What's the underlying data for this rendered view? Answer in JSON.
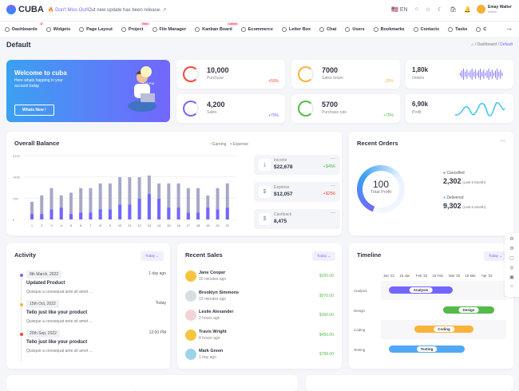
{
  "header": {
    "logo": "CUBA",
    "notice_highlight": "Don't Miss Out!",
    "notice_text": "Out new update has been release.",
    "lang": "EN",
    "user_name": "Emay Walter",
    "user_role": "Admin",
    "cart_count": "0",
    "bell_count": "0"
  },
  "nav": [
    {
      "label": "Dashboards",
      "badge": "2"
    },
    {
      "label": "Widgets"
    },
    {
      "label": "Page Layout"
    },
    {
      "label": "Project",
      "badge": "New"
    },
    {
      "label": "File Manager"
    },
    {
      "label": "Kanban Board",
      "badge": "Latest"
    },
    {
      "label": "Ecommerce"
    },
    {
      "label": "Letter Box"
    },
    {
      "label": "Chat"
    },
    {
      "label": "Users"
    },
    {
      "label": "Bookmarks"
    },
    {
      "label": "Contacts"
    },
    {
      "label": "Tasks"
    },
    {
      "label": "C"
    }
  ],
  "page": {
    "title": "Default",
    "breadcrumb": [
      "Dashboard",
      "Default"
    ]
  },
  "welcome": {
    "title": "Welcome to cuba",
    "text": "Here whats happing in your account today",
    "button": "Whats New !",
    "time": "3:58 PM"
  },
  "stats": [
    {
      "value": "10,000",
      "label": "Purchase",
      "change": "+50%",
      "color": "#fc4438"
    },
    {
      "value": "7000",
      "label": "Sales return",
      "change": "-20%",
      "color": "#f8b33b"
    },
    {
      "value": "4,200",
      "label": "Sales",
      "change": "+70%",
      "color": "#7366ff"
    },
    {
      "value": "5700",
      "label": "Purchase rate",
      "change": "+70%",
      "color": "#54ba4a"
    }
  ],
  "mini": [
    {
      "value": "1,80k",
      "label": "Orders"
    },
    {
      "value": "6,90k",
      "label": "Profit"
    }
  ],
  "balance": {
    "title": "Overall Balance",
    "side": [
      {
        "name": "Income",
        "amount": "$22,678",
        "delta": "+$456",
        "color": "#54ba4a"
      },
      {
        "name": "Expense",
        "amount": "$12,057",
        "delta": "+$256",
        "color": "#fc4438"
      },
      {
        "name": "Cashback",
        "amount": "8,475",
        "delta": "",
        "color": "#000"
      }
    ]
  },
  "chart_data": {
    "type": "bar",
    "categories": [
      "1",
      "2",
      "3",
      "4",
      "5",
      "6",
      "7",
      "8",
      "9",
      "10",
      "11",
      "12",
      "13",
      "14",
      "15",
      "16",
      "17",
      "18",
      "19",
      "20",
      "21"
    ],
    "series": [
      {
        "name": "Earning",
        "color": "#a6a8c9",
        "values": [
          580,
          790,
          1030,
          790,
          880,
          1030,
          1030,
          1185,
          1185,
          1390,
          1390,
          1390,
          1445,
          1185,
          1185,
          1185,
          1030,
          1030,
          790,
          1030,
          1185
        ]
      },
      {
        "name": "Expense",
        "color": "#7366ff",
        "values": [
          180,
          180,
          330,
          385,
          180,
          225,
          225,
          330,
          330,
          485,
          485,
          680,
          835,
          680,
          385,
          385,
          225,
          225,
          385,
          330,
          385
        ]
      }
    ],
    "yticks": [
      "0",
      "700",
      "1400",
      "2100"
    ],
    "ylim": [
      0,
      2100
    ],
    "legend": "top"
  },
  "orders": {
    "title": "Recent Orders",
    "center_value": "100",
    "center_label": "Total Profit",
    "items": [
      {
        "name": "Cancelled",
        "value": "2,302",
        "period": "(Last 6 Month)",
        "color": "#7366ff"
      },
      {
        "name": "Delivered",
        "value": "9,302",
        "period": "(Last 6 Month)",
        "color": "#16c7f9"
      }
    ]
  },
  "activity": {
    "title": "Activity",
    "filter": "Today",
    "items": [
      {
        "date": "8th March, 2022",
        "time": "1 day ago",
        "title": "Updated Product",
        "desc": "Quisque a consequat ante sit amet ...",
        "color": "#7366ff"
      },
      {
        "date": "15th Oct, 2022",
        "time": "Today",
        "title": "Tello just like your product",
        "desc": "Quisque a consequat ante sit amet ...",
        "color": "#f8b33b"
      },
      {
        "date": "20th Sep, 2022",
        "time": "12:00 PM",
        "title": "Tello just like your product",
        "desc": "Quisque a consequat ante sit amet ...",
        "color": "#fc4438"
      }
    ]
  },
  "sales": {
    "title": "Recent Sales",
    "filter": "Today",
    "items": [
      {
        "name": "Jane Cooper",
        "time": "10 minutes ago",
        "amount": "$200.00",
        "color": "#f5c542"
      },
      {
        "name": "Brooklyn Simmons",
        "time": "19 minutes ago",
        "amount": "$970.00",
        "color": "#d7dde3"
      },
      {
        "name": "Leslie Alexander",
        "time": "2 hours ago",
        "amount": "$300.00",
        "color": "#f4d3d7"
      },
      {
        "name": "Travis Wright",
        "time": "8 hours ago",
        "amount": "$450.00",
        "color": "#f5c542"
      },
      {
        "name": "Mark Green",
        "time": "1 day ago",
        "amount": "$768.00",
        "color": "#9fd4e8"
      }
    ]
  },
  "timeline": {
    "title": "Timeline",
    "filter": "Today",
    "months": [
      "Jan '22",
      "15 Jan",
      "Feb '22",
      "15 Feb",
      "Mar '22",
      "15 Mar",
      "Apr '22"
    ],
    "tasks": [
      {
        "name": "Analysis",
        "color": "#7366ff"
      },
      {
        "name": "Design",
        "color": "#54ba4a"
      },
      {
        "name": "Coding",
        "color": "#f8b33b"
      },
      {
        "name": "Testing",
        "color": "#52a8f5"
      }
    ]
  }
}
